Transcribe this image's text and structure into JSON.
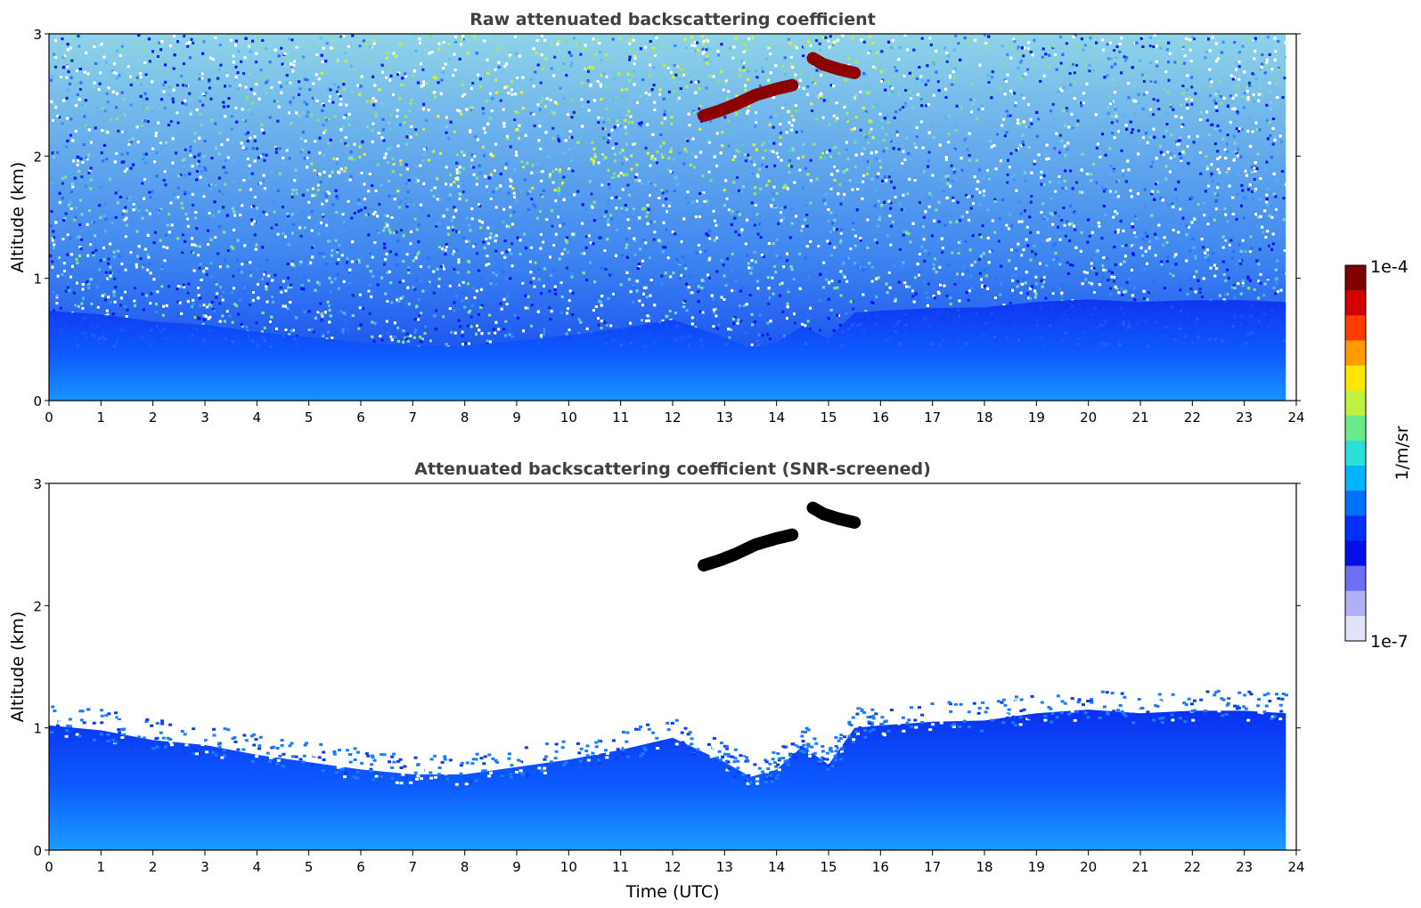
{
  "chart_data": [
    {
      "type": "heatmap",
      "title": "Raw attenuated backscattering coefficient",
      "xlabel": "",
      "ylabel": "Altitude (km)",
      "xlim": [
        0,
        24
      ],
      "ylim": [
        0,
        3
      ],
      "x_ticks": [
        "0",
        "1",
        "2",
        "3",
        "4",
        "5",
        "6",
        "7",
        "8",
        "9",
        "10",
        "11",
        "12",
        "13",
        "14",
        "15",
        "16",
        "17",
        "18",
        "19",
        "20",
        "21",
        "22",
        "23",
        "24"
      ],
      "y_ticks": [
        "0",
        "1",
        "2",
        "3"
      ],
      "data_extent_x": [
        0,
        23.8
      ],
      "features": {
        "description_values": "boundary-layer backscatter 0-1 km, noisy signal above",
        "cloud_segments": [
          {
            "x": [
              12.6,
              12.9,
              13.2,
              13.6,
              14.0,
              14.3
            ],
            "y": [
              2.33,
              2.37,
              2.42,
              2.5,
              2.55,
              2.58
            ]
          },
          {
            "x": [
              14.7,
              14.9,
              15.2,
              15.5
            ],
            "y": [
              2.8,
              2.75,
              2.71,
              2.68
            ]
          }
        ]
      }
    },
    {
      "type": "heatmap",
      "title": "Attenuated backscattering coefficient (SNR-screened)",
      "xlabel": "Time (UTC)",
      "ylabel": "Altitude (km)",
      "xlim": [
        0,
        24
      ],
      "ylim": [
        0,
        3
      ],
      "x_ticks": [
        "0",
        "1",
        "2",
        "3",
        "4",
        "5",
        "6",
        "7",
        "8",
        "9",
        "10",
        "11",
        "12",
        "13",
        "14",
        "15",
        "16",
        "17",
        "18",
        "19",
        "20",
        "21",
        "22",
        "23",
        "24"
      ],
      "y_ticks": [
        "0",
        "1",
        "2",
        "3"
      ],
      "data_extent_x": [
        0,
        23.8
      ],
      "boundary_layer_top_km": {
        "x": [
          0,
          1,
          2,
          3,
          4,
          5,
          6,
          7,
          8,
          9,
          10,
          11,
          12,
          13,
          13.5,
          14,
          14.5,
          15,
          15.5,
          16,
          17,
          18,
          19,
          20,
          21,
          22,
          23,
          23.8
        ],
        "y": [
          1.02,
          0.98,
          0.9,
          0.86,
          0.78,
          0.72,
          0.66,
          0.62,
          0.62,
          0.68,
          0.74,
          0.82,
          0.92,
          0.72,
          0.6,
          0.66,
          0.85,
          0.7,
          1.0,
          1.02,
          1.05,
          1.06,
          1.12,
          1.15,
          1.12,
          1.14,
          1.14,
          1.12
        ]
      },
      "cloud_segments": [
        {
          "x": [
            12.6,
            12.9,
            13.2,
            13.6,
            14.0,
            14.3
          ],
          "y": [
            2.33,
            2.37,
            2.42,
            2.5,
            2.55,
            2.58
          ]
        },
        {
          "x": [
            14.7,
            14.9,
            15.2,
            15.5
          ],
          "y": [
            2.8,
            2.75,
            2.71,
            2.68
          ]
        }
      ]
    }
  ],
  "colorbar": {
    "label": "1/m/sr",
    "max_label": "1e-4",
    "min_label": "1e-7",
    "colors": [
      "#7f0000",
      "#d40000",
      "#ff3c00",
      "#ff9a00",
      "#ffe600",
      "#bff23e",
      "#6aec8c",
      "#2ae0d8",
      "#00b4ff",
      "#0070ff",
      "#0030ff",
      "#0010e8",
      "#6d6df5",
      "#b0b0f5",
      "#e2e2fb"
    ],
    "scale": "log"
  }
}
